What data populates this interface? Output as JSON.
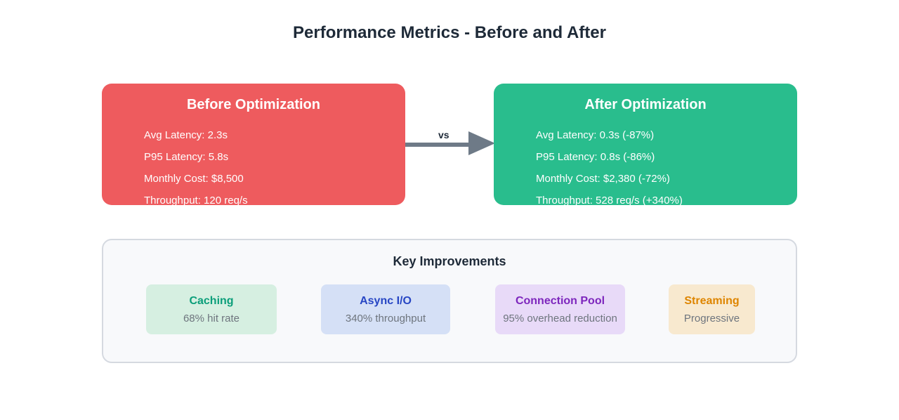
{
  "title": "Performance Metrics - Before and After",
  "comparison": {
    "vs_label": "vs",
    "arrow_color": "#6e7a87",
    "before": {
      "title": "Before Optimization",
      "color": "#ee5b5e",
      "metrics": [
        "Avg Latency: 2.3s",
        "P95 Latency: 5.8s",
        "Monthly Cost: $8,500",
        "Throughput: 120 req/s"
      ]
    },
    "after": {
      "title": "After Optimization",
      "color": "#29bd8d",
      "metrics": [
        "Avg Latency: 0.3s (-87%)",
        "P95 Latency: 0.8s (-86%)",
        "Monthly Cost: $2,380 (-72%)",
        "Throughput: 528 req/s (+340%)"
      ]
    }
  },
  "improvements": {
    "title": "Key Improvements",
    "cards": [
      {
        "name": "Caching",
        "detail": "68% hit rate",
        "bg": "#d6efe1",
        "fg": "#0b9e7a"
      },
      {
        "name": "Async I/O",
        "detail": "340% throughput",
        "bg": "#d5e0f6",
        "fg": "#2746c4"
      },
      {
        "name": "Connection Pool",
        "detail": "95% overhead reduction",
        "bg": "#e8daf8",
        "fg": "#7d26bd"
      },
      {
        "name": "Streaming",
        "detail": "Progressive",
        "bg": "#f8e9cf",
        "fg": "#de8500"
      }
    ]
  }
}
